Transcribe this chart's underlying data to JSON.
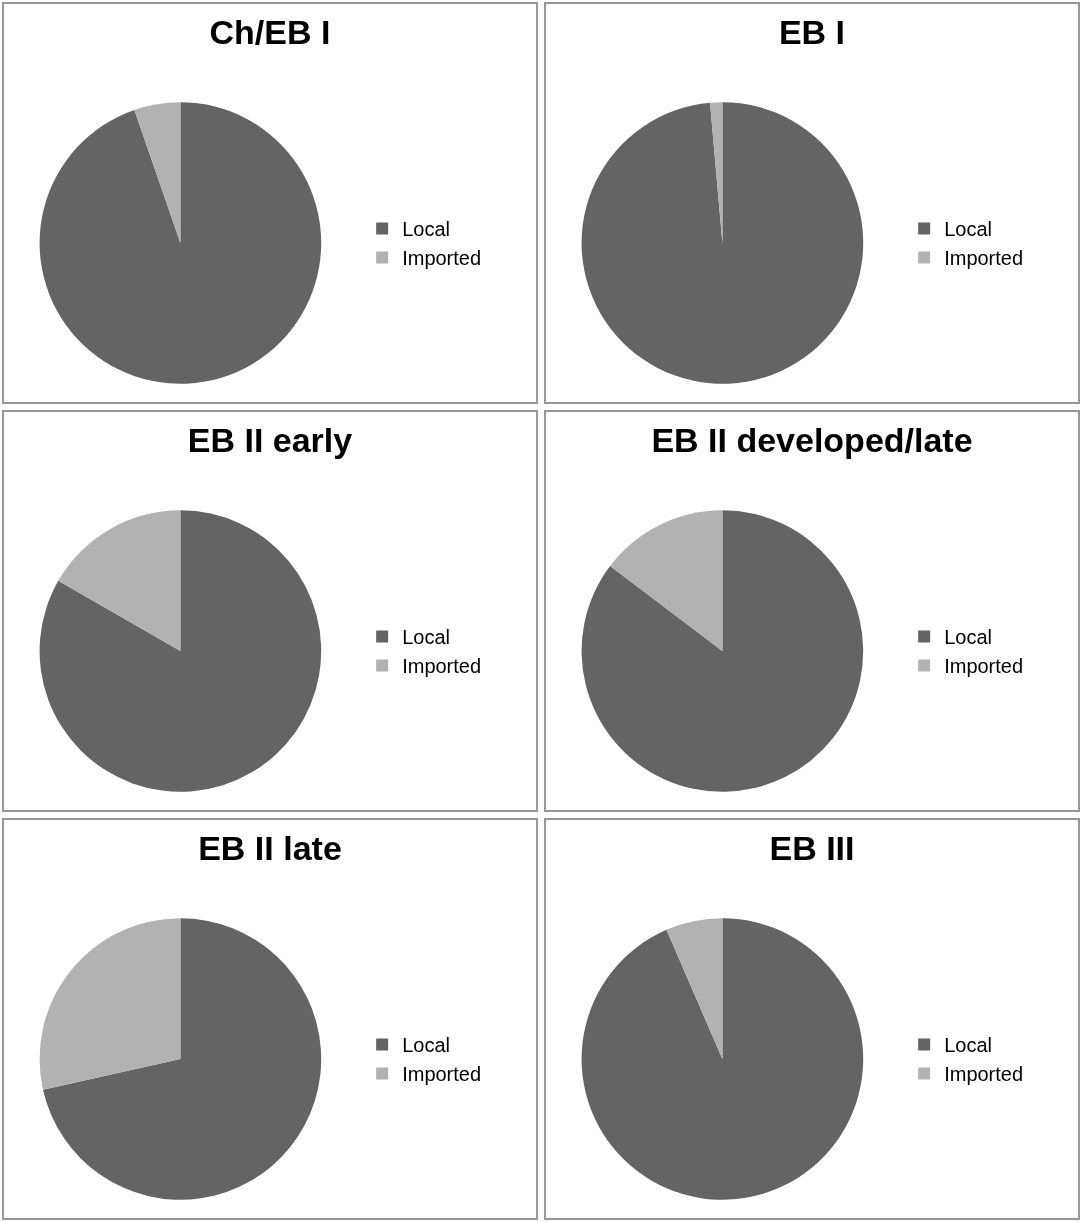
{
  "chart_data": [
    {
      "type": "pie",
      "title": "Ch/EB I",
      "categories": [
        "Local",
        "Imported"
      ],
      "values": [
        94.7,
        5.3
      ],
      "colors": [
        "#646464",
        "#b2b2b2"
      ],
      "legend": "right"
    },
    {
      "type": "pie",
      "title": "EB I",
      "categories": [
        "Local",
        "Imported"
      ],
      "values": [
        98.6,
        1.4
      ],
      "colors": [
        "#646464",
        "#b2b2b2"
      ],
      "legend": "right"
    },
    {
      "type": "pie",
      "title": "EB II early",
      "categories": [
        "Local",
        "Imported"
      ],
      "values": [
        83.3,
        16.7
      ],
      "colors": [
        "#646464",
        "#b2b2b2"
      ],
      "legend": "right"
    },
    {
      "type": "pie",
      "title": "EB II developed/late",
      "categories": [
        "Local",
        "Imported"
      ],
      "values": [
        85.3,
        14.7
      ],
      "colors": [
        "#646464",
        "#b2b2b2"
      ],
      "legend": "right"
    },
    {
      "type": "pie",
      "title": "EB II late",
      "categories": [
        "Local",
        "Imported"
      ],
      "values": [
        71.5,
        28.5
      ],
      "colors": [
        "#646464",
        "#b2b2b2"
      ],
      "legend": "right"
    },
    {
      "type": "pie",
      "title": "EB III",
      "categories": [
        "Local",
        "Imported"
      ],
      "values": [
        93.5,
        6.5
      ],
      "colors": [
        "#646464",
        "#b2b2b2"
      ],
      "legend": "right"
    }
  ]
}
